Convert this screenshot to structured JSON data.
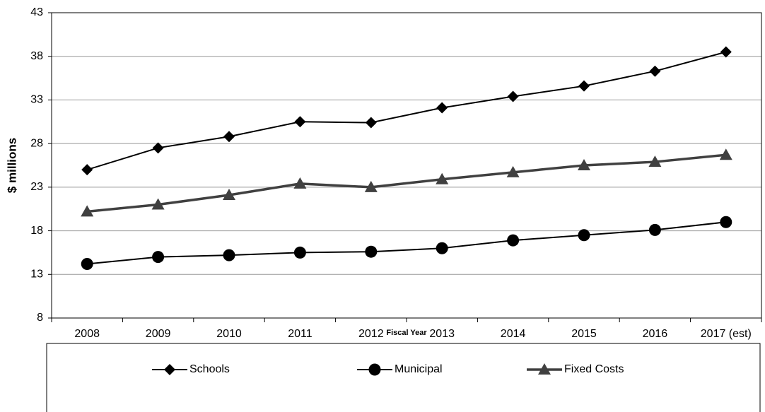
{
  "chart_data": {
    "type": "line",
    "xlabel": "Fiscal Year",
    "ylabel": "$ millions",
    "categories": [
      "2008",
      "2009",
      "2010",
      "2011",
      "2012",
      "2013",
      "2014",
      "2015",
      "2016",
      "2017 (est)"
    ],
    "series": [
      {
        "name": "Schools",
        "color": "#000000",
        "marker": "diamond",
        "values": [
          25.0,
          27.5,
          28.8,
          30.5,
          30.4,
          32.1,
          33.4,
          34.6,
          36.3,
          38.5
        ]
      },
      {
        "name": "Municipal",
        "color": "#000000",
        "marker": "circle",
        "values": [
          14.2,
          15.0,
          15.2,
          15.5,
          15.6,
          16.0,
          16.9,
          17.5,
          18.1,
          19.0
        ]
      },
      {
        "name": "Fixed Costs",
        "color": "#404040",
        "marker": "triangle",
        "values": [
          20.2,
          21.0,
          22.1,
          23.4,
          23.0,
          23.9,
          24.7,
          25.5,
          25.9,
          26.7
        ]
      }
    ],
    "ylim": [
      8,
      43
    ],
    "yticks": [
      8,
      13,
      18,
      23,
      28,
      33,
      38,
      43
    ],
    "grid": true,
    "legend": "bottom"
  }
}
